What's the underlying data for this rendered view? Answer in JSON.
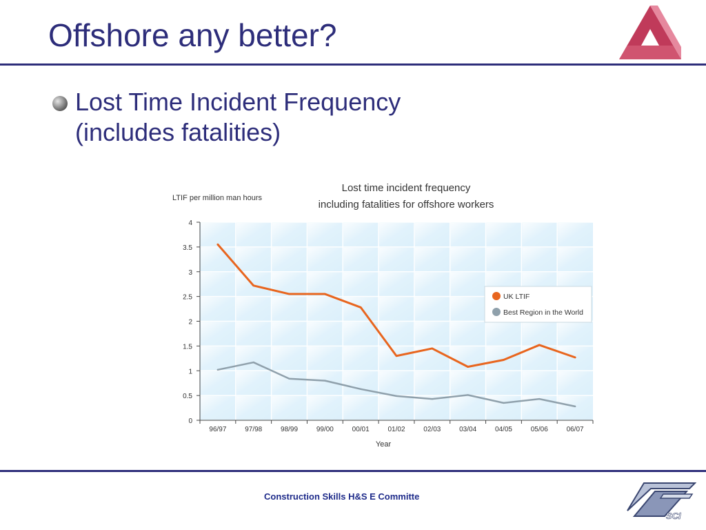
{
  "slide": {
    "title": "Offshore any better?",
    "bullet_line1": "Lost Time Incident Frequency",
    "bullet_line2": "(includes fatalities)",
    "footer": "Construction Skills  H&S E Committe",
    "sci_logo_text": "SCI"
  },
  "colors": {
    "title": "#2d2d7a",
    "rule": "#2d2d7a",
    "uk_ltif": "#e8651e",
    "best_region": "#8fa0ab",
    "plot_bg": "#dcf0fb"
  },
  "icons": {
    "top_logo": "triangle-logo-icon",
    "bullet": "sphere-bullet-icon",
    "bottom_logo": "sci-logo-icon"
  },
  "chart_data": {
    "type": "line",
    "title_line1": "Lost time incident frequency",
    "title_line2": "including fatalities for offshore workers",
    "ylabel": "LTIF per million man hours",
    "xlabel": "Year",
    "categories": [
      "96/97",
      "97/98",
      "98/99",
      "99/00",
      "00/01",
      "01/02",
      "02/03",
      "03/04",
      "04/05",
      "05/06",
      "06/07"
    ],
    "ylim": [
      0,
      4
    ],
    "yticks": [
      0,
      0.5,
      1,
      1.5,
      2,
      2.5,
      3,
      3.5,
      4
    ],
    "ytick_labels": [
      "0",
      "0.5",
      "1",
      "1.5",
      "2",
      "2.5",
      "3",
      "3.5",
      "4"
    ],
    "grid": true,
    "legend_position": "right",
    "series": [
      {
        "name": "UK LTIF",
        "values": [
          3.55,
          2.72,
          2.55,
          2.55,
          2.28,
          1.3,
          1.45,
          1.08,
          1.22,
          1.52,
          1.27
        ]
      },
      {
        "name": "Best Region in the World",
        "values": [
          1.02,
          1.17,
          0.84,
          0.8,
          0.63,
          0.49,
          0.43,
          0.51,
          0.35,
          0.43,
          0.28
        ]
      }
    ]
  }
}
